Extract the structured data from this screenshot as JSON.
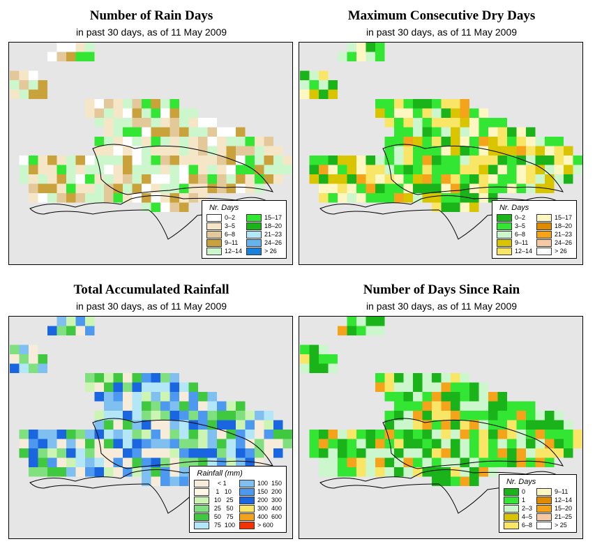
{
  "panels": {
    "rain_days": {
      "title": "Number of Rain Days",
      "subtitle": "in past 30 days, as of  11 May 2009",
      "legend": {
        "title": "Nr. Days",
        "col1": [
          {
            "label": "0–2",
            "color": "#ffffff"
          },
          {
            "label": "3–5",
            "color": "#f5e6c8"
          },
          {
            "label": "6–8",
            "color": "#e3c99a"
          },
          {
            "label": "9–11",
            "color": "#c9a23c"
          },
          {
            "label": "12–14",
            "color": "#ccf7cc"
          }
        ],
        "col2": [
          {
            "label": "15–17",
            "color": "#33e633"
          },
          {
            "label": "18–20",
            "color": "#1ab31a"
          },
          {
            "label": "21–23",
            "color": "#b3e6f7"
          },
          {
            "label": "24–26",
            "color": "#66b3f0"
          },
          {
            "label": "> 26",
            "color": "#1a80d9"
          }
        ]
      }
    },
    "max_dry_days": {
      "title": "Maximum Consecutive Dry Days",
      "subtitle": "in past 30 days, as of  11 May 2009",
      "legend": {
        "title": "Nr. Days",
        "col1": [
          {
            "label": "0–2",
            "color": "#1ab31a"
          },
          {
            "label": "3–5",
            "color": "#33e633"
          },
          {
            "label": "6–8",
            "color": "#ccf7cc"
          },
          {
            "label": "9–11",
            "color": "#d9c400"
          },
          {
            "label": "12–14",
            "color": "#fae666"
          }
        ],
        "col2": [
          {
            "label": "15–17",
            "color": "#fff7c2"
          },
          {
            "label": "18–20",
            "color": "#e08a00"
          },
          {
            "label": "21–23",
            "color": "#f5a31a"
          },
          {
            "label": "24–26",
            "color": "#f7c9a3"
          },
          {
            "label": "> 26",
            "color": "#ffffff"
          }
        ]
      }
    },
    "total_rainfall": {
      "title": "Total Accumulated Rainfall",
      "subtitle": "in past 30 days, as of  11 May 2009",
      "legend": {
        "title": "Rainfall (mm)",
        "col1": [
          {
            "label": "   < 1",
            "color": "#f7ecd9"
          },
          {
            "label": "  1   10",
            "color": "#fff7e6"
          },
          {
            "label": " 10   25",
            "color": "#ccf5b3"
          },
          {
            "label": " 25   50",
            "color": "#80e080"
          },
          {
            "label": " 50   75",
            "color": "#40c840"
          },
          {
            "label": " 75  100",
            "color": "#b3e6f7"
          }
        ],
        "col2": [
          {
            "label": "100  150",
            "color": "#80c0f0"
          },
          {
            "label": "150  200",
            "color": "#4d99f0"
          },
          {
            "label": "200  300",
            "color": "#1a66e0"
          },
          {
            "label": "300  400",
            "color": "#fae666"
          },
          {
            "label": "400  600",
            "color": "#f5a31a"
          },
          {
            "label": "> 600",
            "color": "#f53300"
          }
        ]
      }
    },
    "days_since_rain": {
      "title": "Number of Days Since Rain",
      "subtitle": "in past 30 days, as of  11 May 2009",
      "legend": {
        "title": "Nr. Days",
        "col1": [
          {
            "label": "0",
            "color": "#1ab31a"
          },
          {
            "label": "1",
            "color": "#33e633"
          },
          {
            "label": "2–3",
            "color": "#ccf7cc"
          },
          {
            "label": "4–5",
            "color": "#d9c400"
          },
          {
            "label": "6–8",
            "color": "#fae666"
          }
        ],
        "col2": [
          {
            "label": "9–11",
            "color": "#fff7c2"
          },
          {
            "label": "12–14",
            "color": "#e08a00"
          },
          {
            "label": "15–20",
            "color": "#f5a31a"
          },
          {
            "label": "21–25",
            "color": "#f7c9a3"
          },
          {
            "label": "> 25",
            "color": "#ffffff"
          }
        ]
      }
    }
  }
}
